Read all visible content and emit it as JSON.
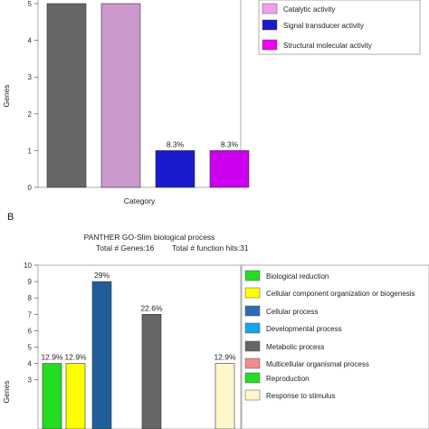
{
  "chart_data": [
    {
      "type": "bar",
      "panel_label": "",
      "title_lines": [],
      "xlabel": "Category",
      "ylabel": "Genes",
      "ylim": [
        0,
        5
      ],
      "yticks": [
        0,
        1,
        2,
        3,
        4,
        5
      ],
      "bars": [
        {
          "value": 5,
          "label": "",
          "color": "#666666"
        },
        {
          "value": 5,
          "label": "",
          "color": "#cc99cc"
        },
        {
          "value": 1,
          "label": "8.3%",
          "color": "#1a1acc"
        },
        {
          "value": 1,
          "label": "8.3%",
          "color": "#cc00ee"
        }
      ],
      "legend": [
        {
          "name": "Catalytic activity",
          "color": "#f0a0e8"
        },
        {
          "name": "Signal transducer activity",
          "color": "#1a1acc"
        },
        {
          "name": "Structural molecular activity",
          "color": "#ee00ee"
        }
      ]
    },
    {
      "type": "bar",
      "panel_label": "B",
      "title_lines": [
        "PANTHER GO-Slim biological process",
        "Total # Genes:16",
        "Total # function hits:31"
      ],
      "xlabel": "",
      "ylabel": "Genes",
      "ylim": [
        0,
        10
      ],
      "yticks": [
        3,
        4,
        5,
        6,
        7,
        8,
        9,
        10
      ],
      "bars": [
        {
          "value": 4,
          "label": "12.9%",
          "color": "#22dd22"
        },
        {
          "value": 4,
          "label": "12.9%",
          "color": "#ffff00"
        },
        {
          "value": 9,
          "label": "29%",
          "color": "#1f5f99"
        },
        {
          "value": 7,
          "label": "22.6%",
          "color": "#666666"
        },
        {
          "value": 4,
          "label": "12.9%",
          "color": "#fff7cc"
        }
      ],
      "legend": [
        {
          "name": "Biological reduction",
          "color": "#22dd22"
        },
        {
          "name": "Cellular component organization or biogenesis",
          "color": "#ffff00"
        },
        {
          "name": "Cellular process",
          "color": "#2b6cb0"
        },
        {
          "name": "Developmental process",
          "color": "#1aa3e8"
        },
        {
          "name": "Metabolic process",
          "color": "#666666"
        },
        {
          "name": "Multicellular organismal process",
          "color": "#f08c8c"
        },
        {
          "name": "Reproduction",
          "color": "#22dd22"
        },
        {
          "name": "Response to stimulus",
          "color": "#fff7cc"
        }
      ]
    }
  ]
}
